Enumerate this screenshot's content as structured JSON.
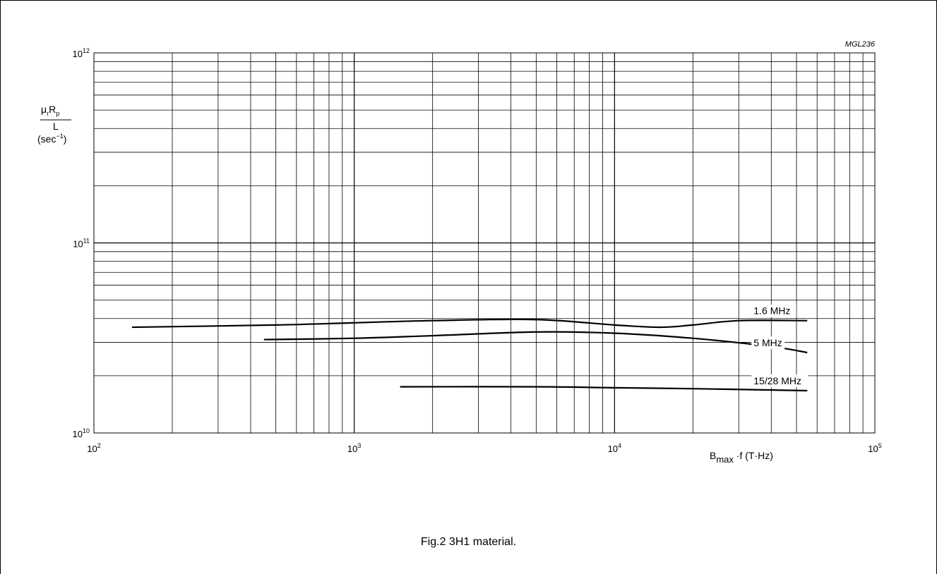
{
  "figure_code": "MGL236",
  "caption": "Fig.2  3H1 material.",
  "chart_data": {
    "type": "line",
    "x_scale": "log",
    "y_scale": "log",
    "xlim": [
      100,
      100000
    ],
    "ylim": [
      10000000000,
      1000000000000
    ],
    "grid": true,
    "x_ticks": [
      {
        "base": "10",
        "exp": "2"
      },
      {
        "base": "10",
        "exp": "3"
      },
      {
        "base": "10",
        "exp": "4"
      },
      {
        "base": "10",
        "exp": "5"
      }
    ],
    "y_ticks": [
      {
        "base": "10",
        "exp": "10"
      },
      {
        "base": "10",
        "exp": "11"
      },
      {
        "base": "10",
        "exp": "12"
      }
    ],
    "xlabel": {
      "main": "B",
      "sub": "max",
      "rest": " ·f (T·Hz)"
    },
    "ylabel": {
      "top_mu": "μ",
      "top_mu_sub": "r",
      "top_r": "R",
      "top_r_sub": "p",
      "denominator": "L",
      "unit_pre": "(sec",
      "unit_sup": "−1",
      "unit_post": ")"
    },
    "series": [
      {
        "name": "1.6 MHz",
        "x": [
          140,
          500,
          1000,
          2000,
          5000,
          10000,
          15000,
          20000,
          30000,
          55000
        ],
        "y": [
          36000000000,
          37000000000,
          38000000000,
          39000000000,
          39500000000,
          37000000000,
          36000000000,
          37000000000,
          39000000000,
          39000000000
        ]
      },
      {
        "name": "5 MHz",
        "x": [
          450,
          1000,
          2000,
          5000,
          10000,
          20000,
          40000,
          55000
        ],
        "y": [
          31000000000,
          31500000000,
          32500000000,
          34000000000,
          33500000000,
          31500000000,
          28500000000,
          26500000000
        ]
      },
      {
        "name": "15/28 MHz",
        "x": [
          1500,
          5000,
          10000,
          20000,
          55000
        ],
        "y": [
          17500000000,
          17500000000,
          17300000000,
          17100000000,
          16700000000
        ]
      }
    ]
  }
}
